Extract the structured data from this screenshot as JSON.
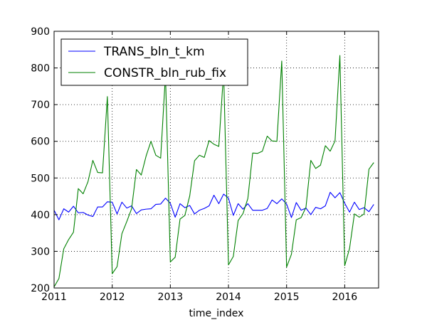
{
  "chart_data": {
    "type": "line",
    "title": "",
    "xlabel": "time_index",
    "ylabel": "",
    "xlim": [
      2011.0,
      2016.583
    ],
    "ylim": [
      200,
      900
    ],
    "x_ticks": [
      2011,
      2012,
      2013,
      2014,
      2015,
      2016
    ],
    "x_tick_labels": [
      "2011",
      "2012",
      "2013",
      "2014",
      "2015",
      "2016"
    ],
    "y_ticks": [
      200,
      300,
      400,
      500,
      600,
      700,
      800,
      900
    ],
    "y_tick_labels": [
      "200",
      "300",
      "400",
      "500",
      "600",
      "700",
      "800",
      "900"
    ],
    "grid": true,
    "legend_position": "upper-left",
    "x_start": "2011-01",
    "x_step": "1 month",
    "series": [
      {
        "name": "TRANS_bln_t_km",
        "color": "#0000ff",
        "values": [
          412,
          386,
          416,
          407,
          423,
          405,
          406,
          399,
          395,
          421,
          421,
          435,
          434,
          402,
          434,
          418,
          424,
          403,
          413,
          415,
          416,
          428,
          429,
          445,
          431,
          393,
          430,
          419,
          425,
          402,
          412,
          417,
          424,
          453,
          430,
          456,
          445,
          398,
          430,
          415,
          430,
          412,
          412,
          412,
          417,
          440,
          430,
          443,
          429,
          392,
          433,
          412,
          418,
          400,
          420,
          416,
          424,
          461,
          446,
          460,
          431,
          407,
          434,
          414,
          419,
          408,
          428
        ]
      },
      {
        "name": "CONSTR_bln_rub_fix",
        "color": "#008000",
        "values": [
          203,
          226,
          307,
          332,
          352,
          471,
          457,
          490,
          548,
          515,
          514,
          722,
          239,
          258,
          348,
          381,
          416,
          523,
          508,
          560,
          600,
          562,
          554,
          783,
          271,
          284,
          388,
          398,
          451,
          547,
          562,
          556,
          602,
          592,
          586,
          790,
          263,
          286,
          384,
          403,
          444,
          568,
          567,
          573,
          614,
          601,
          600,
          819,
          257,
          292,
          386,
          392,
          420,
          548,
          526,
          535,
          588,
          573,
          601,
          834,
          261,
          308,
          402,
          393,
          402,
          524,
          542
        ]
      }
    ]
  }
}
